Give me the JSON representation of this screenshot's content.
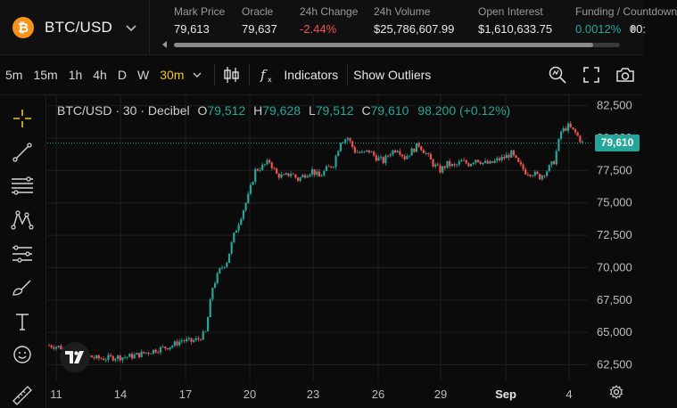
{
  "header": {
    "pair": "BTC/USD",
    "logo_glyph": "₿",
    "stats": [
      {
        "label": "Mark Price",
        "value": "79,613",
        "tone": "neutral"
      },
      {
        "label": "Oracle",
        "value": "79,637",
        "tone": "neutral"
      },
      {
        "label": "24h Change",
        "value": "-2.44%",
        "tone": "negative"
      },
      {
        "label": "24h Volume",
        "value": "$25,786,607.99",
        "tone": "neutral"
      },
      {
        "label": "Open Interest",
        "value": "$1,610,633.75",
        "tone": "neutral"
      },
      {
        "label": "Funding / Countdown",
        "value": "0.0012%",
        "value2": "00:",
        "tone": "positive"
      }
    ]
  },
  "toolbar": {
    "timeframes": [
      "5m",
      "15m",
      "1h",
      "4h",
      "D",
      "W",
      "30m"
    ],
    "active_timeframe": "30m",
    "indicators_label": "Indicators",
    "outliers_label": "Show Outliers"
  },
  "legend": {
    "symbol": "BTC/USD · 30 · Decibel",
    "open_key": "O",
    "open": "79,512",
    "high_key": "H",
    "high": "79,628",
    "low_key": "L",
    "low": "79,512",
    "close_key": "C",
    "close": "79,610",
    "change": "98.200 (+0.12%)"
  },
  "last_price_label": "79,610",
  "colors": {
    "up": "#26a69a",
    "down": "#ef5350",
    "accent": "#f0c419",
    "grid": "#1f1f1f"
  },
  "chart_data": {
    "type": "candlestick",
    "title": "BTC/USD · 30 · Decibel",
    "x_ticks": [
      "11",
      "14",
      "17",
      "20",
      "23",
      "26",
      "29",
      "Sep",
      "4"
    ],
    "y_ticks": [
      "82,500",
      "80,000",
      "77,500",
      "75,000",
      "72,500",
      "70,000",
      "67,500",
      "65,000",
      "62,500"
    ],
    "ylim": [
      61300,
      83300
    ],
    "last_price": 79610,
    "series": [
      {
        "name": "BTC/USD",
        "close_path": [
          [
            0,
            64000
          ],
          [
            4,
            63900
          ],
          [
            8,
            63600
          ],
          [
            12,
            63400
          ],
          [
            16,
            63200
          ],
          [
            20,
            63000
          ],
          [
            24,
            63000
          ],
          [
            28,
            63100
          ],
          [
            32,
            63100
          ],
          [
            36,
            63200
          ],
          [
            40,
            63400
          ],
          [
            44,
            63600
          ],
          [
            48,
            63800
          ],
          [
            52,
            64000
          ],
          [
            56,
            64400
          ],
          [
            60,
            64300
          ],
          [
            63,
            64500
          ],
          [
            66,
            65000
          ],
          [
            69,
            68500
          ],
          [
            72,
            69800
          ],
          [
            75,
            70500
          ],
          [
            78,
            72500
          ],
          [
            81,
            74000
          ],
          [
            84,
            75500
          ],
          [
            87,
            77500
          ],
          [
            90,
            77800
          ],
          [
            93,
            78200
          ],
          [
            96,
            77200
          ],
          [
            99,
            77000
          ],
          [
            102,
            77300
          ],
          [
            105,
            76800
          ],
          [
            108,
            77200
          ],
          [
            111,
            77500
          ],
          [
            114,
            77000
          ],
          [
            117,
            77600
          ],
          [
            120,
            78000
          ],
          [
            123,
            79800
          ],
          [
            126,
            80000
          ],
          [
            129,
            79000
          ],
          [
            132,
            78800
          ],
          [
            135,
            79000
          ],
          [
            138,
            78500
          ],
          [
            141,
            78200
          ],
          [
            144,
            78900
          ],
          [
            147,
            79200
          ],
          [
            150,
            78500
          ],
          [
            153,
            79000
          ],
          [
            156,
            79500
          ],
          [
            159,
            78800
          ],
          [
            162,
            78000
          ],
          [
            165,
            77500
          ],
          [
            168,
            78000
          ],
          [
            171,
            77800
          ],
          [
            174,
            78200
          ],
          [
            177,
            78000
          ],
          [
            180,
            78400
          ],
          [
            183,
            78100
          ],
          [
            186,
            78000
          ],
          [
            189,
            78300
          ],
          [
            192,
            78500
          ],
          [
            195,
            78800
          ],
          [
            198,
            78000
          ],
          [
            201,
            77400
          ],
          [
            204,
            77300
          ],
          [
            207,
            77000
          ],
          [
            210,
            77500
          ],
          [
            213,
            78200
          ],
          [
            216,
            80500
          ],
          [
            219,
            80900
          ],
          [
            222,
            80400
          ],
          [
            225,
            79610
          ]
        ]
      }
    ]
  }
}
